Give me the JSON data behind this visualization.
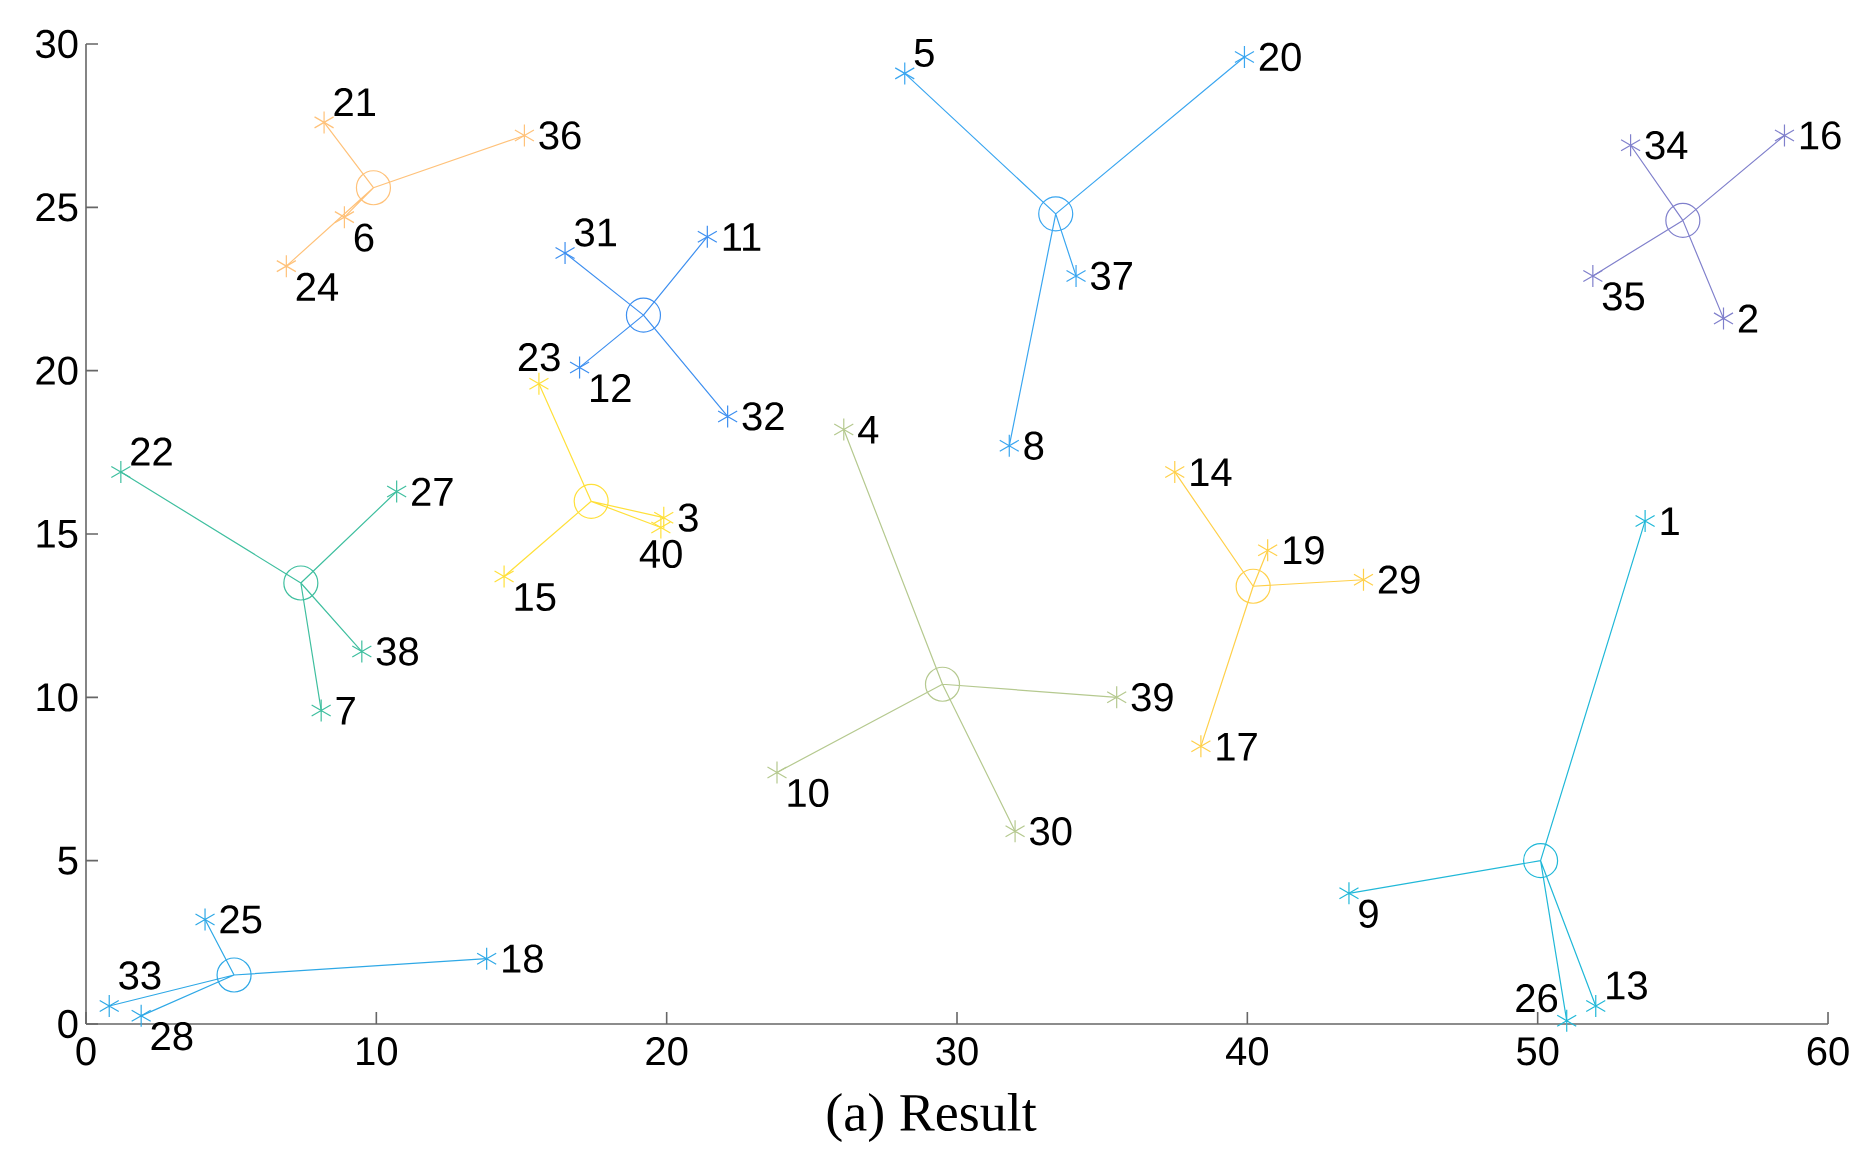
{
  "chart_data": {
    "type": "scatter",
    "xlim": [
      0,
      60
    ],
    "ylim": [
      0,
      30
    ],
    "xticks": [
      0,
      10,
      20,
      30,
      40,
      50,
      60
    ],
    "yticks": [
      0,
      5,
      10,
      15,
      20,
      25,
      30
    ],
    "grid": false,
    "annotations": [
      "(a) Result",
      {
        "text": "21",
        "x": 8.2,
        "y": 27.6
      },
      {
        "text": "36",
        "x": 15.1,
        "y": 27.2
      },
      {
        "text": "6",
        "x": 8.9,
        "y": 24.7
      },
      {
        "text": "24",
        "x": 6.9,
        "y": 23.2
      },
      {
        "text": "31",
        "x": 16.5,
        "y": 23.6
      },
      {
        "text": "11",
        "x": 21.4,
        "y": 24.1
      },
      {
        "text": "12",
        "x": 17.0,
        "y": 20.1
      },
      {
        "text": "32",
        "x": 22.1,
        "y": 18.6
      },
      {
        "text": "23",
        "x": 15.6,
        "y": 19.6
      },
      {
        "text": "3",
        "x": 19.9,
        "y": 15.5
      },
      {
        "text": "40",
        "x": 19.8,
        "y": 15.2
      },
      {
        "text": "15",
        "x": 14.4,
        "y": 13.7
      },
      {
        "text": "22",
        "x": 1.2,
        "y": 16.9
      },
      {
        "text": "27",
        "x": 10.7,
        "y": 16.3
      },
      {
        "text": "38",
        "x": 9.5,
        "y": 11.4
      },
      {
        "text": "7",
        "x": 8.1,
        "y": 9.6
      },
      {
        "text": "25",
        "x": 4.1,
        "y": 3.2
      },
      {
        "text": "18",
        "x": 13.8,
        "y": 2.0
      },
      {
        "text": "33",
        "x": 0.8,
        "y": 0.55
      },
      {
        "text": "28",
        "x": 1.9,
        "y": 0.25
      },
      {
        "text": "4",
        "x": 26.1,
        "y": 18.2
      },
      {
        "text": "39",
        "x": 35.5,
        "y": 10.0
      },
      {
        "text": "10",
        "x": 23.8,
        "y": 7.7
      },
      {
        "text": "30",
        "x": 32.0,
        "y": 5.9
      },
      {
        "text": "5",
        "x": 28.2,
        "y": 29.1
      },
      {
        "text": "20",
        "x": 39.9,
        "y": 29.6
      },
      {
        "text": "37",
        "x": 34.1,
        "y": 22.9
      },
      {
        "text": "8",
        "x": 31.8,
        "y": 17.7
      },
      {
        "text": "14",
        "x": 37.5,
        "y": 16.9
      },
      {
        "text": "19",
        "x": 40.7,
        "y": 14.5
      },
      {
        "text": "29",
        "x": 44.0,
        "y": 13.6
      },
      {
        "text": "17",
        "x": 38.4,
        "y": 8.5
      },
      {
        "text": "34",
        "x": 53.2,
        "y": 26.9
      },
      {
        "text": "16",
        "x": 58.5,
        "y": 27.2
      },
      {
        "text": "35",
        "x": 51.9,
        "y": 22.9
      },
      {
        "text": "2",
        "x": 56.4,
        "y": 21.6
      },
      {
        "text": "1",
        "x": 53.7,
        "y": 15.4
      },
      {
        "text": "9",
        "x": 43.5,
        "y": 4.0
      },
      {
        "text": "26",
        "x": 51.0,
        "y": 0.1
      },
      {
        "text": "13",
        "x": 52.0,
        "y": 0.55
      }
    ],
    "series": [
      {
        "type": "line",
        "marker": "none",
        "line_style": "solid",
        "color": "#ffc27a",
        "x": [
          9.9,
          8.2,
          9.9,
          15.1,
          9.9,
          8.9,
          9.9,
          6.9
        ],
        "values": [
          25.6,
          27.6,
          25.6,
          27.2,
          25.6,
          24.7,
          25.6,
          23.2
        ]
      },
      {
        "marker": "cross",
        "color": "#ffc27a",
        "x": [
          8.2,
          15.1,
          8.9,
          6.9
        ],
        "values": [
          27.6,
          27.2,
          24.7,
          23.2
        ]
      },
      {
        "type": "line",
        "marker": "none",
        "line_style": "solid",
        "color": "#3d8ff0",
        "x": [
          19.2,
          16.5,
          19.2,
          21.4,
          19.2,
          17.0,
          19.2,
          22.1
        ],
        "values": [
          21.7,
          23.6,
          21.7,
          24.1,
          21.7,
          20.1,
          21.7,
          18.6
        ]
      },
      {
        "marker": "cross",
        "color": "#3d8ff0",
        "x": [
          16.5,
          21.4,
          17.0,
          22.1
        ],
        "values": [
          23.6,
          24.1,
          20.1,
          18.6
        ]
      },
      {
        "type": "line",
        "marker": "none",
        "line_style": "solid",
        "color": "#ffe03a",
        "x": [
          17.4,
          15.6,
          17.4,
          19.9,
          17.4,
          19.8,
          17.4,
          14.4
        ],
        "values": [
          16.0,
          19.6,
          16.0,
          15.5,
          16.0,
          15.2,
          16.0,
          13.7
        ]
      },
      {
        "marker": "cross",
        "color": "#ffe03a",
        "x": [
          15.6,
          19.9,
          19.8,
          14.4
        ],
        "values": [
          19.6,
          15.5,
          15.2,
          13.7
        ]
      },
      {
        "type": "line",
        "marker": "none",
        "line_style": "solid",
        "color": "#3fbf9f",
        "x": [
          7.4,
          1.2,
          7.4,
          10.7,
          7.4,
          9.5,
          7.4,
          8.1
        ],
        "values": [
          13.5,
          16.9,
          13.5,
          16.3,
          13.5,
          11.4,
          13.5,
          9.6
        ]
      },
      {
        "marker": "cross",
        "color": "#3fbf9f",
        "x": [
          1.2,
          10.7,
          9.5,
          8.1
        ],
        "values": [
          16.9,
          16.3,
          11.4,
          9.6
        ]
      },
      {
        "type": "line",
        "marker": "none",
        "line_style": "solid",
        "color": "#2ea8e6",
        "x": [
          5.1,
          4.1,
          5.1,
          13.8,
          5.1,
          0.8,
          5.1,
          1.9
        ],
        "values": [
          1.5,
          3.2,
          1.5,
          2.0,
          1.5,
          0.55,
          1.5,
          0.25
        ]
      },
      {
        "marker": "cross",
        "color": "#2ea8e6",
        "x": [
          4.1,
          13.8,
          0.8,
          1.9
        ],
        "values": [
          3.2,
          2.0,
          0.55,
          0.25
        ]
      },
      {
        "type": "line",
        "marker": "none",
        "line_style": "solid",
        "color": "#b5c98f",
        "x": [
          29.5,
          26.1,
          29.5,
          35.5,
          29.5,
          23.8,
          29.5,
          32.0
        ],
        "values": [
          10.4,
          18.2,
          10.4,
          10.0,
          10.4,
          7.7,
          10.4,
          5.9
        ]
      },
      {
        "marker": "cross",
        "color": "#b5c98f",
        "x": [
          26.1,
          35.5,
          23.8,
          32.0
        ],
        "values": [
          18.2,
          10.0,
          7.7,
          5.9
        ]
      },
      {
        "type": "line",
        "marker": "none",
        "line_style": "solid",
        "color": "#3aa6f0",
        "x": [
          33.4,
          28.2,
          33.4,
          39.9,
          33.4,
          34.1,
          33.4,
          31.8
        ],
        "values": [
          24.8,
          29.1,
          24.8,
          29.6,
          24.8,
          22.9,
          24.8,
          17.7
        ]
      },
      {
        "marker": "cross",
        "color": "#3aa6f0",
        "x": [
          28.2,
          39.9,
          34.1,
          31.8
        ],
        "values": [
          29.1,
          29.6,
          22.9,
          17.7
        ]
      },
      {
        "type": "line",
        "marker": "none",
        "line_style": "solid",
        "color": "#ffd04a",
        "x": [
          40.2,
          37.5,
          40.2,
          40.7,
          40.2,
          44.0,
          40.2,
          38.4
        ],
        "values": [
          13.4,
          16.9,
          13.4,
          14.5,
          13.4,
          13.6,
          13.4,
          8.5
        ]
      },
      {
        "marker": "cross",
        "color": "#ffd04a",
        "x": [
          37.5,
          40.7,
          44.0,
          38.4
        ],
        "values": [
          16.9,
          14.5,
          13.6,
          8.5
        ]
      },
      {
        "type": "line",
        "marker": "none",
        "line_style": "solid",
        "color": "#8080cc",
        "x": [
          55.0,
          53.2,
          55.0,
          58.5,
          55.0,
          51.9,
          55.0,
          56.4
        ],
        "values": [
          24.6,
          26.9,
          24.6,
          27.2,
          24.6,
          22.9,
          24.6,
          21.6
        ]
      },
      {
        "marker": "cross",
        "color": "#8080cc",
        "x": [
          53.2,
          58.5,
          51.9,
          56.4
        ],
        "values": [
          26.9,
          27.2,
          22.9,
          21.6
        ]
      },
      {
        "type": "line",
        "marker": "none",
        "line_style": "solid",
        "color": "#20b8d8",
        "x": [
          50.1,
          53.7,
          50.1,
          43.5,
          50.1,
          51.0,
          50.1,
          52.0
        ],
        "values": [
          5.0,
          15.4,
          5.0,
          4.0,
          5.0,
          0.1,
          5.0,
          0.55
        ]
      },
      {
        "marker": "cross",
        "color": "#20b8d8",
        "x": [
          53.7,
          43.5,
          51.0,
          52.0
        ],
        "values": [
          15.4,
          4.0,
          0.1,
          0.55
        ]
      },
      {
        "marker": "circle",
        "colors": [
          "#ffc27a",
          "#3d8ff0",
          "#ffe03a",
          "#3fbf9f",
          "#2ea8e6",
          "#b5c98f",
          "#3aa6f0",
          "#ffd04a",
          "#8080cc",
          "#20b8d8"
        ],
        "x": [
          9.9,
          19.2,
          17.4,
          7.4,
          5.1,
          29.5,
          33.4,
          40.2,
          55.0,
          50.1
        ],
        "values": [
          25.6,
          21.7,
          16.0,
          13.5,
          1.5,
          10.4,
          24.8,
          13.4,
          24.6,
          5.0
        ]
      }
    ]
  }
}
